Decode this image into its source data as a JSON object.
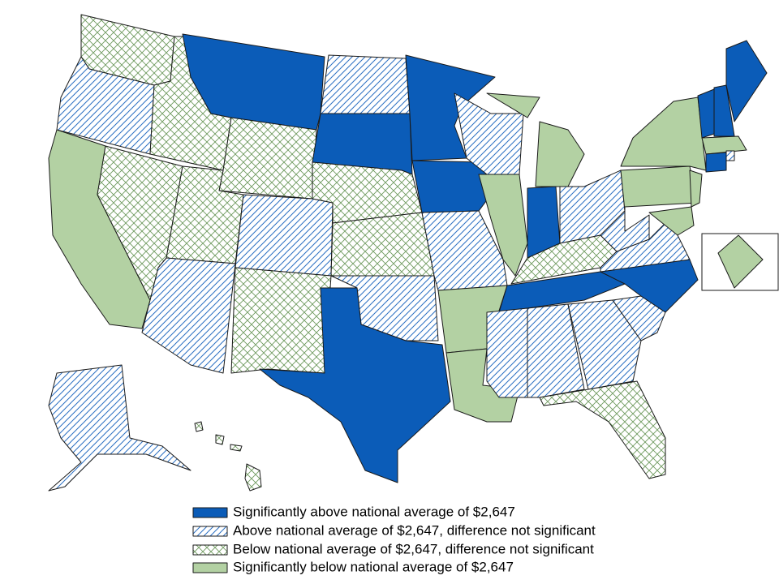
{
  "legend": {
    "items": [
      {
        "label": "Significantly above national average of $2,647"
      },
      {
        "label": "Above national average of $2,647, difference not significant"
      },
      {
        "label": "Below national average of $2,647, difference not significant"
      },
      {
        "label": "Significantly below national average of $2,647"
      }
    ]
  }
}
